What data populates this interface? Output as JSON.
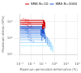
{
  "chart_data": {
    "type": "line",
    "xlabel": "Maximum permissible deformation (%)",
    "ylabel": "Maximum stress (MPa)",
    "log": true,
    "grid": true,
    "legend": "upper right",
    "xlim": [
      0.001,
      100
    ],
    "ylim": [
      10,
      3000
    ],
    "xticks": [
      {
        "value": 0.001,
        "label": "10⁻³"
      },
      {
        "value": 0.01,
        "label": "10⁻²"
      },
      {
        "value": 0.1,
        "label": "10⁻¹"
      },
      {
        "value": 1,
        "label": "10⁰"
      },
      {
        "value": 10,
        "label": "10¹"
      },
      {
        "value": 100,
        "label": "10²"
      }
    ],
    "yticks": [
      {
        "value": 10,
        "label": "10¹"
      },
      {
        "value": 100,
        "label": "10²"
      },
      {
        "value": 1000,
        "label": "10³"
      }
    ],
    "series": [
      {
        "name": "SMA N=10",
        "color": "#cc0000",
        "type": "line",
        "curves": [
          {
            "color": "#cc0000",
            "x": [
              0.001,
              0.12,
              0.12
            ],
            "y": [
              1200,
              1200,
              500
            ]
          },
          {
            "color": "#dd1111",
            "x": [
              0.001,
              0.15,
              0.15
            ],
            "y": [
              900,
              900,
              400
            ]
          },
          {
            "color": "#cc0000",
            "x": [
              0.001,
              0.1,
              0.1
            ],
            "y": [
              700,
              700,
              350
            ]
          }
        ]
      },
      {
        "name": "SMA N=1000",
        "color": "#2255cc",
        "type": "line",
        "curves": [
          {
            "color": "#1144bb",
            "x": [
              0.001,
              0.09,
              0.09
            ],
            "y": [
              500,
              500,
              200
            ]
          },
          {
            "color": "#2255cc",
            "x": [
              0.001,
              0.12,
              0.12
            ],
            "y": [
              420,
              420,
              180
            ]
          },
          {
            "color": "#3366cc",
            "x": [
              0.001,
              0.07,
              0.07
            ],
            "y": [
              350,
              350,
              150
            ]
          },
          {
            "color": "#4477dd",
            "x": [
              0.001,
              0.1,
              0.1
            ],
            "y": [
              280,
              280,
              120
            ]
          },
          {
            "color": "#5588dd",
            "x": [
              0.001,
              0.14,
              0.14
            ],
            "y": [
              220,
              220,
              90
            ]
          },
          {
            "color": "#6699ee",
            "x": [
              0.001,
              0.08,
              0.08
            ],
            "y": [
              180,
              180,
              70
            ]
          },
          {
            "color": "#77aaee",
            "x": [
              0.001,
              0.18,
              0.18
            ],
            "y": [
              140,
              140,
              55
            ]
          },
          {
            "color": "#88bbee",
            "x": [
              0.001,
              0.25,
              0.25
            ],
            "y": [
              110,
              110,
              40
            ]
          },
          {
            "color": "#99ccff",
            "x": [
              0.001,
              0.35,
              0.35
            ],
            "y": [
              80,
              80,
              30
            ]
          },
          {
            "color": "#aaddff",
            "x": [
              0.001,
              0.5,
              0.5
            ],
            "y": [
              55,
              55,
              20
            ]
          },
          {
            "color": "#bbeeff",
            "x": [
              0.001,
              0.7,
              0.7
            ],
            "y": [
              35,
              35,
              15
            ]
          }
        ]
      },
      {
        "type": "scatter",
        "marker": "circle",
        "color": "#ffaaaa",
        "x": [
          0.002,
          0.003,
          0.004,
          0.005,
          0.006,
          0.003,
          0.004,
          0.005,
          0.006,
          0.008,
          0.002,
          0.003,
          0.004,
          0.005,
          0.01,
          0.005,
          0.006,
          0.008,
          0.01,
          0.015
        ],
        "y": [
          1500,
          1400,
          1300,
          1200,
          1100,
          1000,
          950,
          900,
          850,
          800,
          700,
          680,
          650,
          600,
          550,
          500,
          480,
          450,
          420,
          400
        ]
      },
      {
        "type": "scatter",
        "marker": "circle",
        "color": "#aabbee",
        "x": [
          0.002,
          0.003,
          0.004,
          0.005,
          0.003,
          0.004,
          0.005,
          0.006,
          0.004,
          0.005,
          0.006,
          0.008,
          0.005,
          0.006,
          0.008,
          0.01,
          0.006,
          0.008,
          0.01,
          0.015
        ],
        "y": [
          400,
          380,
          360,
          340,
          300,
          280,
          260,
          240,
          200,
          190,
          180,
          160,
          130,
          120,
          110,
          100,
          80,
          75,
          70,
          60
        ]
      }
    ]
  }
}
